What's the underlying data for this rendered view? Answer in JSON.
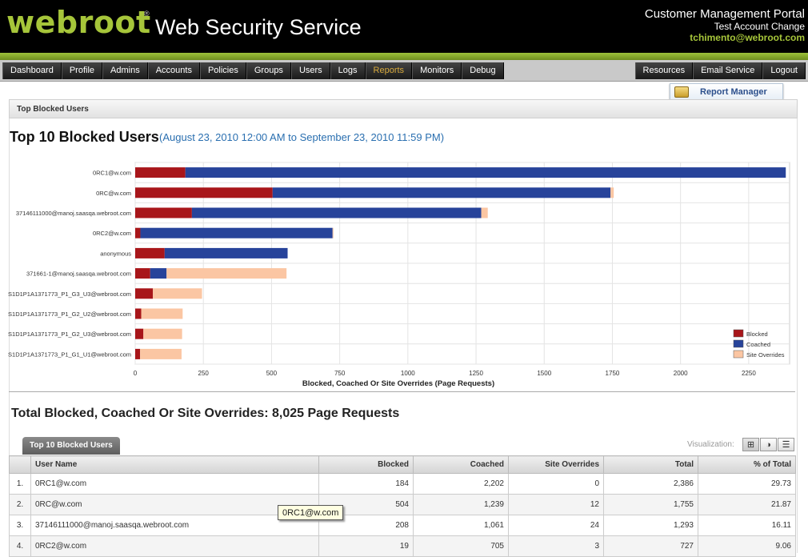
{
  "header": {
    "logo": "webroot",
    "registered": "®",
    "product": "Web Security Service",
    "portal_title": "Customer Management Portal",
    "account": "Test Account Change",
    "user_email": "tchimento@webroot.com"
  },
  "nav": {
    "left": [
      "Dashboard",
      "Profile",
      "Admins",
      "Accounts",
      "Policies",
      "Groups",
      "Users",
      "Logs",
      "Reports",
      "Monitors",
      "Debug"
    ],
    "active": "Reports",
    "right": [
      "Resources",
      "Email Service",
      "Logout"
    ]
  },
  "report_manager_label": "Report Manager",
  "breadcrumb": "Top Blocked Users",
  "report": {
    "title": "Top 10 Blocked Users",
    "date_range": "(August 23, 2010 12:00 AM to September 23, 2010 11:59 PM)",
    "total_text": "Total Blocked, Coached Or Site Overrides: 8,025 Page Requests"
  },
  "chart_data": {
    "type": "bar",
    "orientation": "horizontal",
    "stacked": true,
    "categories": [
      "0RC1@w.com",
      "0RC@w.com",
      "37146111000@manoj.saasqa.webroot.com",
      "0RC2@w.com",
      "anonymous",
      "371661-1@manoj.saasqa.webroot.com",
      "S1D1P1A1371773_P1_G3_U3@webroot.com",
      "S1D1P1A1371773_P1_G2_U2@webroot.com",
      "S1D1P1A1371773_P1_G2_U3@webroot.com",
      "S1D1P1A1371773_P1_G1_U1@webroot.com"
    ],
    "series": [
      {
        "name": "Blocked",
        "color": "#a8161a",
        "values": [
          184,
          504,
          208,
          19,
          108,
          55,
          65,
          22,
          30,
          18
        ]
      },
      {
        "name": "Coached",
        "color": "#27439a",
        "values": [
          2202,
          1239,
          1061,
          705,
          451,
          60,
          0,
          0,
          0,
          0
        ]
      },
      {
        "name": "Site Overrides",
        "color": "#fbc6a3",
        "values": [
          0,
          12,
          24,
          3,
          0,
          440,
          180,
          152,
          142,
          152
        ]
      }
    ],
    "xlabel": "Blocked, Coached Or Site Overrides (Page Requests)",
    "xticks": [
      0,
      250,
      500,
      750,
      1000,
      1250,
      1500,
      1750,
      2000,
      2250
    ],
    "xlim": [
      0,
      2400
    ],
    "grid": true,
    "legend": "bottom-right"
  },
  "table": {
    "tab_label": "Top 10 Blocked Users",
    "viz_label": "Visualization:",
    "columns": [
      "User Name",
      "Blocked",
      "Coached",
      "Site Overrides",
      "Total",
      "% of Total"
    ],
    "rows": [
      {
        "idx": "1.",
        "user": "0RC1@w.com",
        "blocked": "184",
        "coached": "2,202",
        "overrides": "0",
        "total": "2,386",
        "pct": "29.73"
      },
      {
        "idx": "2.",
        "user": "0RC@w.com",
        "blocked": "504",
        "coached": "1,239",
        "overrides": "12",
        "total": "1,755",
        "pct": "21.87"
      },
      {
        "idx": "3.",
        "user": "37146111000@manoj.saasqa.webroot.com",
        "blocked": "208",
        "coached": "1,061",
        "overrides": "24",
        "total": "1,293",
        "pct": "16.11"
      },
      {
        "idx": "4.",
        "user": "0RC2@w.com",
        "blocked": "19",
        "coached": "705",
        "overrides": "3",
        "total": "727",
        "pct": "9.06"
      }
    ]
  },
  "tooltip": "0RC1@w.com"
}
